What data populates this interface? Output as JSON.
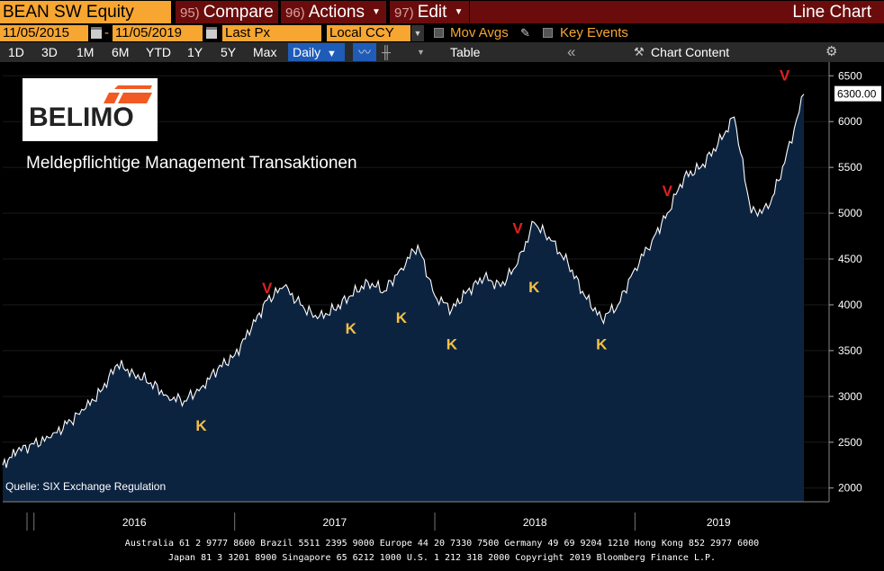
{
  "toolbar": {
    "ticker": "BEAN SW Equity",
    "compare": {
      "num": "95)",
      "label": "Compare"
    },
    "actions": {
      "num": "96)",
      "label": "Actions"
    },
    "edit": {
      "num": "97)",
      "label": "Edit"
    },
    "view_title": "Line Chart"
  },
  "settings": {
    "start_date": "11/05/2015",
    "end_date": "11/05/2019",
    "dash": "-",
    "field": "Last Px",
    "currency": "Local CCY",
    "mov_avgs": "Mov Avgs",
    "key_events": "Key Events"
  },
  "periods": [
    "1D",
    "3D",
    "1M",
    "6M",
    "YTD",
    "1Y",
    "5Y",
    "Max"
  ],
  "frequency": "Daily",
  "table_label": "Table",
  "chart_content_label": "Chart Content",
  "logo": {
    "text": "BELIMO"
  },
  "annotation_title": "Meldepflichtige Management Transaktionen",
  "source": "Quelle: SIX Exchange Regulation",
  "footer": {
    "line1": "Australia 61 2 9777 8600 Brazil 5511 2395 9000 Europe 44 20 7330 7500 Germany 49 69 9204 1210 Hong Kong 852 2977 6000",
    "line2": "Japan 81 3 3201 8900       Singapore 65 6212 1000       U.S. 1 212 318 2000              Copyright 2019 Bloomberg Finance L.P."
  },
  "chart_data": {
    "type": "area",
    "title": "",
    "xlabel": "",
    "ylabel": "",
    "x_ticks": [
      "2016",
      "2017",
      "2018",
      "2019"
    ],
    "x_range": [
      "2015-11-05",
      "2019-11-05"
    ],
    "ylim": [
      1850,
      6650
    ],
    "y_ticks": [
      2000,
      2500,
      3000,
      3500,
      4000,
      4500,
      5000,
      5500,
      6000,
      6500
    ],
    "last_price_label": "6300.00",
    "last_price": 6300,
    "colors": {
      "fill": "#0c2340",
      "line": "#ffffff",
      "buy": "#f5c042",
      "sell": "#e02020"
    },
    "series": [
      {
        "x": [
          "2015-11-05",
          "2015-12-01",
          "2016-01-01",
          "2016-02-01",
          "2016-03-01",
          "2016-04-01",
          "2016-05-01",
          "2016-06-01",
          "2016-07-01",
          "2016-08-01",
          "2016-09-01",
          "2016-10-01",
          "2016-11-01",
          "2016-12-01",
          "2017-01-01",
          "2017-02-01",
          "2017-03-01",
          "2017-04-01",
          "2017-05-01",
          "2017-06-01",
          "2017-07-01",
          "2017-08-01",
          "2017-09-01",
          "2017-10-01",
          "2017-11-01",
          "2017-12-01",
          "2018-01-01",
          "2018-02-01",
          "2018-03-01",
          "2018-04-01",
          "2018-05-01",
          "2018-06-01",
          "2018-07-01",
          "2018-08-01",
          "2018-09-01",
          "2018-10-01",
          "2018-11-01",
          "2018-12-01",
          "2019-01-01",
          "2019-02-01",
          "2019-03-01",
          "2019-04-01",
          "2019-05-01",
          "2019-06-01",
          "2019-07-01",
          "2019-08-01",
          "2019-09-01",
          "2019-10-01",
          "2019-11-05"
        ],
        "values": [
          2250,
          2400,
          2480,
          2550,
          2700,
          2850,
          3050,
          3350,
          3250,
          3150,
          3000,
          2950,
          3100,
          3300,
          3450,
          3750,
          4050,
          4200,
          4000,
          3850,
          3950,
          4100,
          4250,
          4150,
          4400,
          4650,
          4100,
          3950,
          4150,
          4300,
          4200,
          4450,
          4900,
          4700,
          4450,
          4100,
          3850,
          4000,
          4400,
          4700,
          5000,
          5400,
          5500,
          5750,
          6050,
          5000,
          5050,
          5550,
          6300
        ]
      }
    ],
    "transactions": [
      {
        "date": "2016-11-01",
        "type": "K",
        "price": 2880
      },
      {
        "date": "2017-03-01",
        "type": "V",
        "price": 4050
      },
      {
        "date": "2017-08-01",
        "type": "K",
        "price": 3940
      },
      {
        "date": "2017-11-01",
        "type": "K",
        "price": 4060
      },
      {
        "date": "2018-02-01",
        "type": "K",
        "price": 3770
      },
      {
        "date": "2018-06-01",
        "type": "V",
        "price": 4700
      },
      {
        "date": "2018-07-01",
        "type": "K",
        "price": 4390
      },
      {
        "date": "2018-11-01",
        "type": "K",
        "price": 3770
      },
      {
        "date": "2019-03-01",
        "type": "V",
        "price": 5110
      },
      {
        "date": "2019-10-01",
        "type": "V",
        "price": 6370
      }
    ]
  }
}
